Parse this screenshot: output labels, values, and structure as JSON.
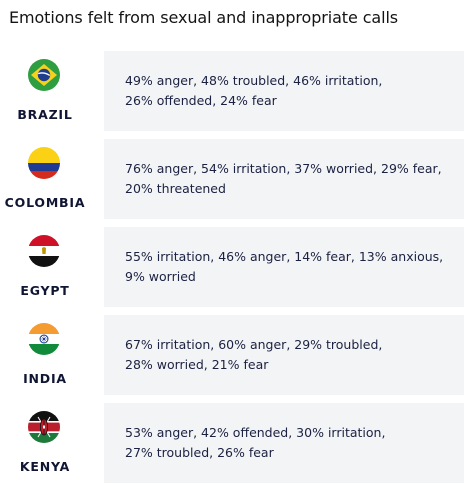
{
  "title": "Emotions felt from sexual and inappropriate calls",
  "rows": [
    {
      "country": "BRAZIL",
      "flag_icon": "brazil-flag-icon",
      "line1": "49% anger, 48% troubled, 46% irritation,",
      "line2": "26% offended, 24% fear"
    },
    {
      "country": "COLOMBIA",
      "flag_icon": "colombia-flag-icon",
      "line1": "76% anger, 54% irritation, 37% worried, 29% fear,",
      "line2": "20% threatened"
    },
    {
      "country": "EGYPT",
      "flag_icon": "egypt-flag-icon",
      "line1": "55% irritation, 46% anger, 14% fear, 13% anxious,",
      "line2": "9% worried"
    },
    {
      "country": "INDIA",
      "flag_icon": "india-flag-icon",
      "line1": "67% irritation, 60% anger, 29% troubled,",
      "line2": "28% worried, 21% fear"
    },
    {
      "country": "KENYA",
      "flag_icon": "kenya-flag-icon",
      "line1": "53% anger, 42% offended, 30% irritation,",
      "line2": "27% troubled, 26% fear"
    }
  ],
  "colors": {
    "panel": "#f3f4f6",
    "text": "#1b2140",
    "country_text": "#101534"
  }
}
